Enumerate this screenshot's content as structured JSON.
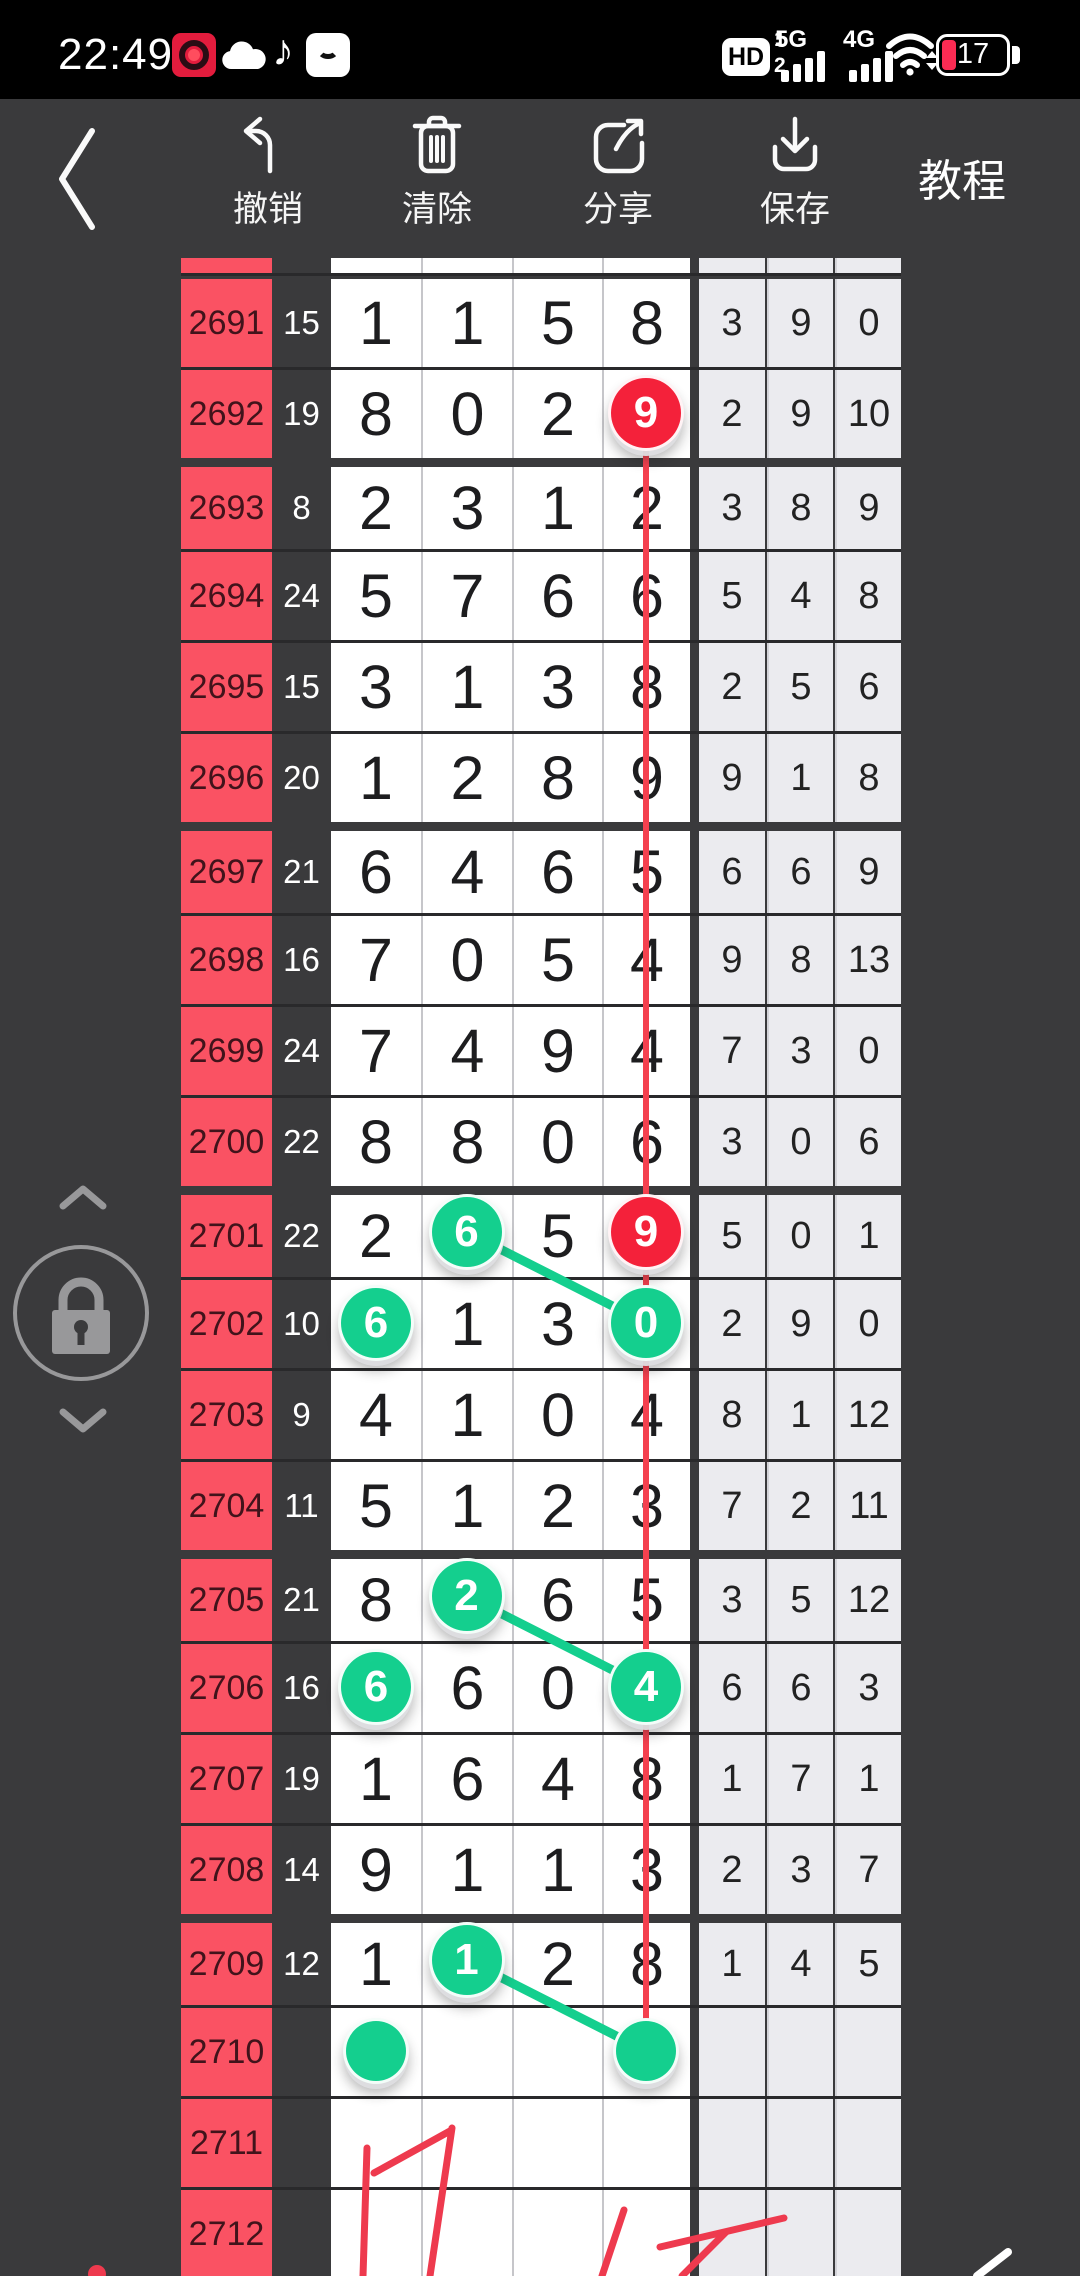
{
  "status": {
    "time": "22:49",
    "hd": "HD",
    "sim1": "1",
    "sim2": "2",
    "net1": "5G",
    "net2": "4G",
    "battery": "17",
    "icons": [
      "screen-record-icon",
      "cloud-icon",
      "music-note-icon",
      "smiley-app-icon",
      "wifi-icon",
      "battery-icon"
    ]
  },
  "toolbar": {
    "back": "back-chevron",
    "items": [
      {
        "id": "undo",
        "label": "撤销",
        "icon": "undo-icon"
      },
      {
        "id": "clear",
        "label": "清除",
        "icon": "trash-icon"
      },
      {
        "id": "share",
        "label": "分享",
        "icon": "share-icon"
      },
      {
        "id": "save",
        "label": "保存",
        "icon": "download-icon"
      }
    ],
    "tutorial": "教程"
  },
  "chart": {
    "group_starts": [
      "2693",
      "2697",
      "2701",
      "2705",
      "2709"
    ],
    "rows": [
      {
        "period": "2691",
        "count": "15",
        "digits": [
          "1",
          "1",
          "5",
          "8"
        ],
        "stats": [
          "3",
          "9",
          "0"
        ],
        "marks": []
      },
      {
        "period": "2692",
        "count": "19",
        "digits": [
          "8",
          "0",
          "2",
          "9"
        ],
        "stats": [
          "2",
          "9",
          "10"
        ],
        "marks": [
          {
            "col": 3,
            "type": "red"
          }
        ]
      },
      {
        "period": "2693",
        "count": "8",
        "digits": [
          "2",
          "3",
          "1",
          "2"
        ],
        "stats": [
          "3",
          "8",
          "9"
        ],
        "marks": []
      },
      {
        "period": "2694",
        "count": "24",
        "digits": [
          "5",
          "7",
          "6",
          "6"
        ],
        "stats": [
          "5",
          "4",
          "8"
        ],
        "marks": []
      },
      {
        "period": "2695",
        "count": "15",
        "digits": [
          "3",
          "1",
          "3",
          "8"
        ],
        "stats": [
          "2",
          "5",
          "6"
        ],
        "marks": []
      },
      {
        "period": "2696",
        "count": "20",
        "digits": [
          "1",
          "2",
          "8",
          "9"
        ],
        "stats": [
          "9",
          "1",
          "8"
        ],
        "marks": []
      },
      {
        "period": "2697",
        "count": "21",
        "digits": [
          "6",
          "4",
          "6",
          "5"
        ],
        "stats": [
          "6",
          "6",
          "9"
        ],
        "marks": []
      },
      {
        "period": "2698",
        "count": "16",
        "digits": [
          "7",
          "0",
          "5",
          "4"
        ],
        "stats": [
          "9",
          "8",
          "13"
        ],
        "marks": []
      },
      {
        "period": "2699",
        "count": "24",
        "digits": [
          "7",
          "4",
          "9",
          "4"
        ],
        "stats": [
          "7",
          "3",
          "0"
        ],
        "marks": []
      },
      {
        "period": "2700",
        "count": "22",
        "digits": [
          "8",
          "8",
          "0",
          "6"
        ],
        "stats": [
          "3",
          "0",
          "6"
        ],
        "marks": []
      },
      {
        "period": "2701",
        "count": "22",
        "digits": [
          "2",
          "6",
          "5",
          "9"
        ],
        "stats": [
          "5",
          "0",
          "1"
        ],
        "marks": [
          {
            "col": 1,
            "type": "green"
          },
          {
            "col": 3,
            "type": "red"
          }
        ]
      },
      {
        "period": "2702",
        "count": "10",
        "digits": [
          "6",
          "1",
          "3",
          "0"
        ],
        "stats": [
          "2",
          "9",
          "0"
        ],
        "marks": [
          {
            "col": 0,
            "type": "green"
          },
          {
            "col": 3,
            "type": "green"
          }
        ]
      },
      {
        "period": "2703",
        "count": "9",
        "digits": [
          "4",
          "1",
          "0",
          "4"
        ],
        "stats": [
          "8",
          "1",
          "12"
        ],
        "marks": []
      },
      {
        "period": "2704",
        "count": "11",
        "digits": [
          "5",
          "1",
          "2",
          "3"
        ],
        "stats": [
          "7",
          "2",
          "11"
        ],
        "marks": []
      },
      {
        "period": "2705",
        "count": "21",
        "digits": [
          "8",
          "2",
          "6",
          "5"
        ],
        "stats": [
          "3",
          "5",
          "12"
        ],
        "marks": [
          {
            "col": 1,
            "type": "green"
          }
        ]
      },
      {
        "period": "2706",
        "count": "16",
        "digits": [
          "6",
          "6",
          "0",
          "4"
        ],
        "stats": [
          "6",
          "6",
          "3"
        ],
        "marks": [
          {
            "col": 0,
            "type": "green"
          },
          {
            "col": 3,
            "type": "green"
          }
        ]
      },
      {
        "period": "2707",
        "count": "19",
        "digits": [
          "1",
          "6",
          "4",
          "8"
        ],
        "stats": [
          "1",
          "7",
          "1"
        ],
        "marks": []
      },
      {
        "period": "2708",
        "count": "14",
        "digits": [
          "9",
          "1",
          "1",
          "3"
        ],
        "stats": [
          "2",
          "3",
          "7"
        ],
        "marks": []
      },
      {
        "period": "2709",
        "count": "12",
        "digits": [
          "1",
          "1",
          "2",
          "8"
        ],
        "stats": [
          "1",
          "4",
          "5"
        ],
        "marks": [
          {
            "col": 1,
            "type": "green"
          }
        ]
      },
      {
        "period": "2710",
        "count": "",
        "digits": [
          "",
          "",
          "",
          ""
        ],
        "stats": [
          "",
          "",
          ""
        ],
        "marks": [
          {
            "col": 0,
            "type": "dot"
          },
          {
            "col": 3,
            "type": "dot"
          }
        ]
      },
      {
        "period": "2711",
        "count": "",
        "digits": [
          "",
          "",
          "",
          ""
        ],
        "stats": [
          "",
          "",
          ""
        ],
        "marks": []
      },
      {
        "period": "2712",
        "count": "",
        "digits": [
          "",
          "",
          "",
          ""
        ],
        "stats": [
          "",
          "",
          ""
        ],
        "marks": []
      }
    ],
    "annotations": {
      "red_line": {
        "col": 3,
        "from_period": "2692",
        "to_period": "2710"
      },
      "green_links": [
        {
          "from": {
            "period": "2701",
            "col": 1
          },
          "to": {
            "period": "2702",
            "col": 3
          }
        },
        {
          "from": {
            "period": "2705",
            "col": 1
          },
          "to": {
            "period": "2706",
            "col": 3
          }
        },
        {
          "from": {
            "period": "2709",
            "col": 1
          },
          "to": {
            "period": "2710",
            "col": 3
          }
        }
      ],
      "freehand_red": [
        [
          [
            367,
            2148
          ],
          [
            363,
            2276
          ]
        ],
        [
          [
            374,
            2173
          ],
          [
            450,
            2131
          ]
        ],
        [
          [
            452,
            2128
          ],
          [
            430,
            2276
          ]
        ],
        [
          [
            624,
            2210
          ],
          [
            602,
            2276
          ]
        ],
        [
          [
            660,
            2247
          ],
          [
            784,
            2218
          ]
        ],
        [
          [
            726,
            2232
          ],
          [
            682,
            2276
          ]
        ]
      ],
      "freehand_white": [
        [
          [
            977,
            2276
          ],
          [
            1008,
            2252
          ]
        ]
      ],
      "red_dot": [
        97,
        2274
      ]
    },
    "colors": {
      "period_bg": "#fa5263",
      "green": "#14cf8e",
      "red_circle": "#f4213a",
      "red_line": "#f4414f",
      "stroke_red": "#ee3a4e",
      "stroke_white": "#ffffff"
    }
  },
  "side_control": {
    "lock": "lock-icon",
    "up": "chevron-up-icon",
    "down": "chevron-down-icon"
  }
}
